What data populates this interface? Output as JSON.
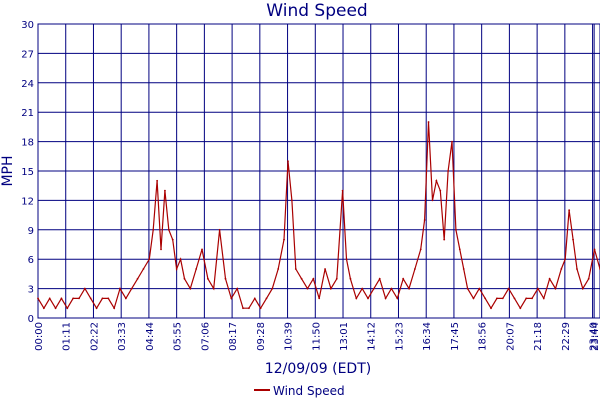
{
  "chart_data": {
    "type": "line",
    "title": "Wind Speed",
    "xlabel": "12/09/09 (EDT)",
    "ylabel": "MPH",
    "ylim": [
      0,
      30
    ],
    "yticks": [
      0,
      3,
      6,
      9,
      12,
      15,
      18,
      21,
      24,
      27,
      30
    ],
    "xlim": [
      "00:00",
      "23:59"
    ],
    "xticks": [
      "00:00",
      "01:11",
      "02:22",
      "03:33",
      "04:44",
      "05:55",
      "07:06",
      "08:17",
      "09:28",
      "10:39",
      "11:50",
      "13:01",
      "14:12",
      "15:23",
      "16:34",
      "17:45",
      "18:56",
      "20:07",
      "21:18",
      "22:29",
      "23:40",
      "23:44"
    ],
    "grid": true,
    "legend": "bottom-center",
    "series": [
      {
        "name": "Wind Speed",
        "color": "#aa0000",
        "x": [
          "00:00",
          "00:15",
          "00:30",
          "00:45",
          "01:00",
          "01:15",
          "01:30",
          "01:45",
          "02:00",
          "02:15",
          "02:30",
          "02:45",
          "03:00",
          "03:15",
          "03:30",
          "03:45",
          "04:00",
          "04:15",
          "04:30",
          "04:45",
          "04:55",
          "05:05",
          "05:15",
          "05:25",
          "05:35",
          "05:45",
          "05:55",
          "06:05",
          "06:15",
          "06:30",
          "06:45",
          "07:00",
          "07:15",
          "07:30",
          "07:45",
          "08:00",
          "08:15",
          "08:30",
          "08:45",
          "09:00",
          "09:15",
          "09:30",
          "09:45",
          "10:00",
          "10:15",
          "10:30",
          "10:40",
          "10:50",
          "11:00",
          "11:15",
          "11:30",
          "11:45",
          "12:00",
          "12:15",
          "12:30",
          "12:45",
          "13:00",
          "13:10",
          "13:20",
          "13:35",
          "13:50",
          "14:05",
          "14:20",
          "14:35",
          "14:50",
          "15:05",
          "15:20",
          "15:35",
          "15:50",
          "16:05",
          "16:20",
          "16:30",
          "16:40",
          "16:50",
          "17:00",
          "17:10",
          "17:20",
          "17:30",
          "17:40",
          "17:50",
          "18:00",
          "18:10",
          "18:20",
          "18:35",
          "18:50",
          "19:05",
          "19:20",
          "19:35",
          "19:50",
          "20:05",
          "20:20",
          "20:35",
          "20:50",
          "21:05",
          "21:20",
          "21:35",
          "21:50",
          "22:05",
          "22:20",
          "22:30",
          "22:40",
          "22:50",
          "23:00",
          "23:15",
          "23:30",
          "23:45",
          "23:59"
        ],
        "values": [
          2,
          1,
          2,
          1,
          2,
          1,
          2,
          2,
          3,
          2,
          1,
          2,
          2,
          1,
          3,
          2,
          3,
          4,
          5,
          6,
          9,
          14,
          7,
          13,
          9,
          8,
          5,
          6,
          4,
          3,
          5,
          7,
          4,
          3,
          9,
          4,
          2,
          3,
          1,
          1,
          2,
          1,
          2,
          3,
          5,
          8,
          16,
          12,
          5,
          4,
          3,
          4,
          2,
          5,
          3,
          4,
          13,
          6,
          4,
          2,
          3,
          2,
          3,
          4,
          2,
          3,
          2,
          4,
          3,
          5,
          7,
          10,
          20,
          12,
          14,
          13,
          8,
          15,
          18,
          9,
          7,
          5,
          3,
          2,
          3,
          2,
          1,
          2,
          2,
          3,
          2,
          1,
          2,
          2,
          3,
          2,
          4,
          3,
          5,
          6,
          11,
          8,
          5,
          3,
          4,
          7,
          5
        ]
      }
    ]
  }
}
